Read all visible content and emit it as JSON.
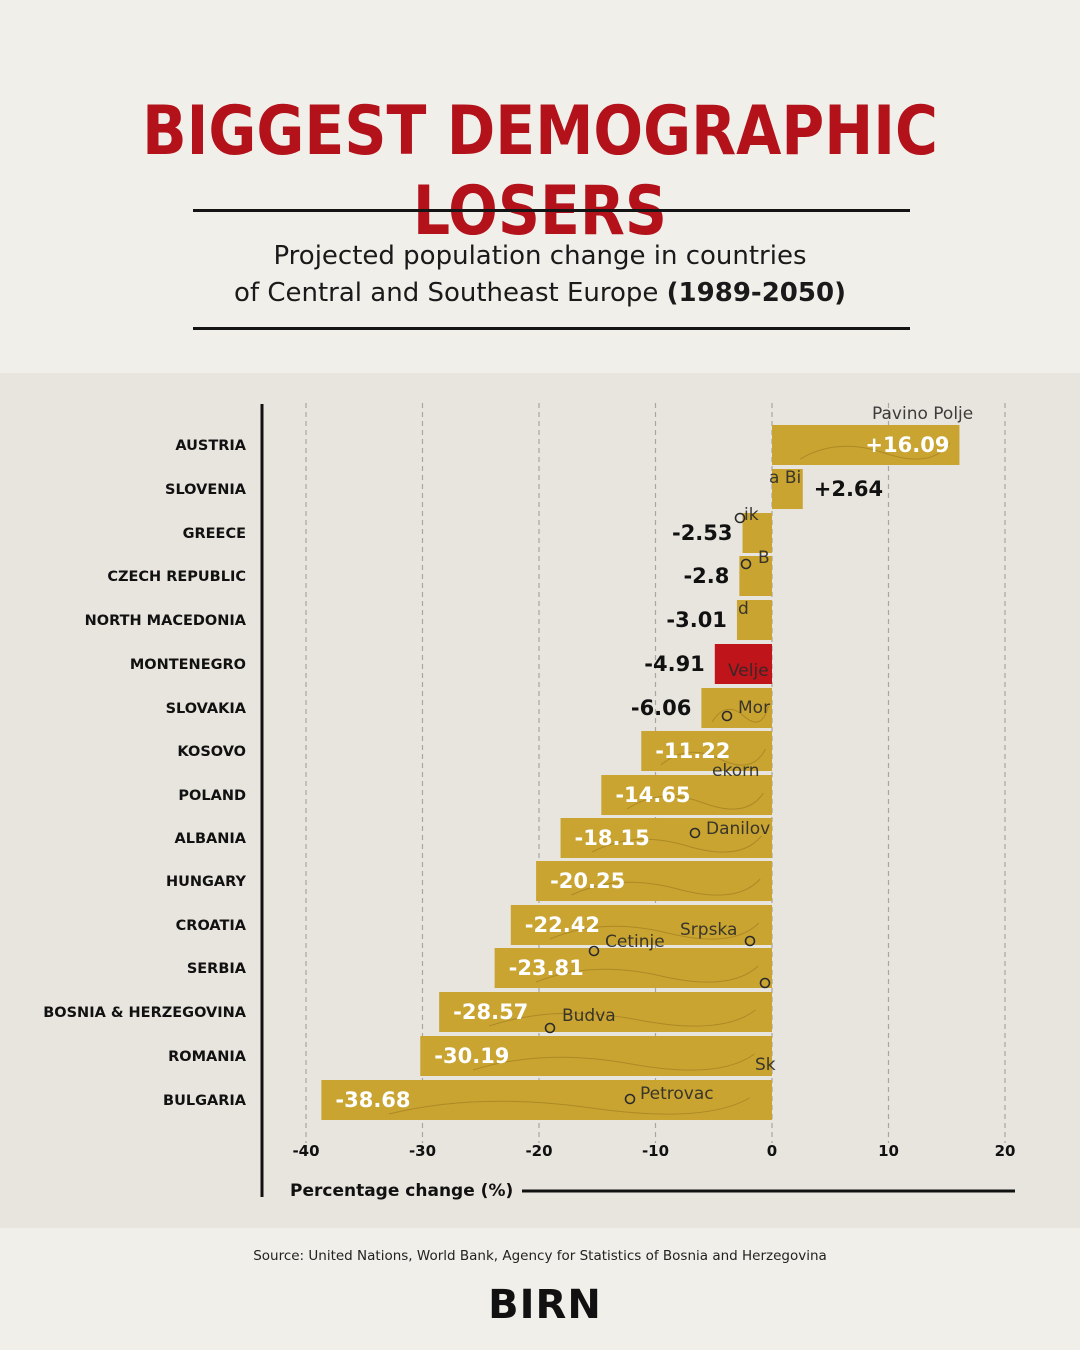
{
  "header": {
    "title": "BIGGEST DEMOGRAPHIC LOSERS",
    "subtitle_line1": "Projected population change in countries",
    "subtitle_line2": "of Central and Southeast Europe",
    "subtitle_period": "(1989-2050)"
  },
  "chart_data": {
    "type": "bar",
    "orientation": "horizontal",
    "categories": [
      "AUSTRIA",
      "SLOVENIA",
      "GREECE",
      "CZECH REPUBLIC",
      "NORTH MACEDONIA",
      "MONTENEGRO",
      "SLOVAKIA",
      "KOSOVO",
      "POLAND",
      "ALBANIA",
      "HUNGARY",
      "CROATIA",
      "SERBIA",
      "BOSNIA & HERZEGOVINA",
      "ROMANIA",
      "BULGARIA"
    ],
    "values": [
      16.09,
      2.64,
      -2.53,
      -2.8,
      -3.01,
      -4.91,
      -6.06,
      -11.22,
      -14.65,
      -18.15,
      -20.25,
      -22.42,
      -23.81,
      -28.57,
      -30.19,
      -38.68
    ],
    "value_labels": [
      "+16.09",
      "+2.64",
      "-2.53",
      "-2.8",
      "-3.01",
      "-4.91",
      "-6.06",
      "-11.22",
      "-14.65",
      "-18.15",
      "-20.25",
      "-22.42",
      "-23.81",
      "-28.57",
      "-30.19",
      "-38.68"
    ],
    "highlight": "MONTENEGRO",
    "xlabel": "Percentage change (%)",
    "xlim": [
      -40,
      20
    ],
    "xticks": [
      -40,
      -30,
      -20,
      -10,
      0,
      10,
      20
    ],
    "xtick_labels": [
      "-40",
      "-30",
      "-20",
      "-10",
      "0",
      "10",
      "20"
    ],
    "grid": true,
    "bar_color": "#c9a431",
    "highlight_color": "#c0141b",
    "map_place_labels": [
      "Pavino Polje",
      "a Bi",
      "ik",
      "B",
      "d",
      "Velje",
      "Mor",
      "ekorn",
      "Danilov",
      "Srpska",
      "Cetinje",
      "Budva",
      "Sk",
      "Petrovac"
    ]
  },
  "footer": {
    "source": "Source: United Nations, World Bank, Agency for Statistics of Bosnia and Herzegovina",
    "logo_text": "BIRN"
  },
  "colors": {
    "title_red": "#b3121b",
    "background": "#f1efea",
    "panel": "#e8e5df"
  }
}
